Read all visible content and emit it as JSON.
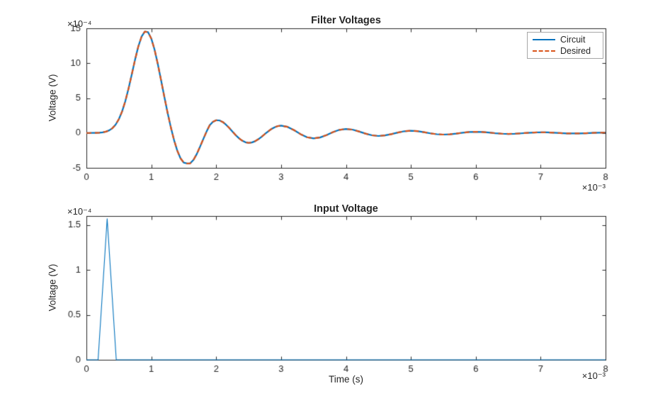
{
  "figure": {
    "background": "#ffffff",
    "axis_color": "#262626",
    "tick_label_color": "#262626",
    "legend_border_color": "#a6a6a6"
  },
  "chart_data": [
    {
      "type": "line",
      "title": "Filter Voltages",
      "xlabel": "",
      "ylabel": "Voltage (V)",
      "x_multiplier": "×10⁻³",
      "y_multiplier": "×10⁻⁴",
      "x_unit": "1e-3 s",
      "y_unit": "1e-4 V",
      "xlim": [
        0,
        8
      ],
      "ylim": [
        -5,
        15
      ],
      "xticks": [
        0,
        1,
        2,
        3,
        4,
        5,
        6,
        7,
        8
      ],
      "yticks": [
        -5,
        0,
        5,
        10,
        15
      ],
      "grid": false,
      "legend": {
        "position": "top-right",
        "entries": [
          {
            "label": "Circuit",
            "color": "#0072BD",
            "style": "solid"
          },
          {
            "label": "Desired",
            "color": "#D95319",
            "style": "dashed"
          }
        ]
      },
      "x": [
        0,
        0.05,
        0.1,
        0.15,
        0.2,
        0.25,
        0.3,
        0.35,
        0.4,
        0.45,
        0.5,
        0.55,
        0.6,
        0.65,
        0.7,
        0.75,
        0.8,
        0.85,
        0.9,
        0.95,
        1,
        1.05,
        1.1,
        1.15,
        1.2,
        1.25,
        1.3,
        1.35,
        1.4,
        1.45,
        1.5,
        1.55,
        1.6,
        1.65,
        1.7,
        1.75,
        1.8,
        1.85,
        1.9,
        1.95,
        2,
        2.05,
        2.1,
        2.15,
        2.2,
        2.25,
        2.3,
        2.35,
        2.4,
        2.45,
        2.5,
        2.55,
        2.6,
        2.65,
        2.7,
        2.75,
        2.8,
        2.85,
        2.9,
        2.95,
        3,
        3.1,
        3.2,
        3.3,
        3.4,
        3.5,
        3.6,
        3.7,
        3.8,
        3.9,
        4,
        4.1,
        4.2,
        4.3,
        4.4,
        4.5,
        4.6,
        4.7,
        4.8,
        4.9,
        5,
        5.1,
        5.2,
        5.3,
        5.4,
        5.5,
        5.6,
        5.7,
        5.8,
        5.9,
        6,
        6.1,
        6.2,
        6.3,
        6.4,
        6.5,
        6.6,
        6.7,
        6.8,
        6.9,
        7,
        7.1,
        7.2,
        7.3,
        7.4,
        7.5,
        7.6,
        7.7,
        7.8,
        7.9,
        8
      ],
      "shared_values": [
        0,
        0,
        0.01,
        0.02,
        0.04,
        0.09,
        0.19,
        0.37,
        0.68,
        1.19,
        1.98,
        3.09,
        4.57,
        6.39,
        8.43,
        10.52,
        12.4,
        13.81,
        14.53,
        14.45,
        13.54,
        11.95,
        9.89,
        7.58,
        5.22,
        2.95,
        0.85,
        -1,
        -2.52,
        -3.63,
        -4.25,
        -4.37,
        -4.35,
        -3.85,
        -3.03,
        -1.99,
        -0.9,
        0.17,
        1.11,
        1.61,
        1.82,
        1.8,
        1.58,
        1.2,
        0.73,
        0.21,
        -0.3,
        -0.75,
        -1.1,
        -1.33,
        -1.42,
        -1.36,
        -1.18,
        -0.89,
        -0.54,
        -0.15,
        0.22,
        0.56,
        0.82,
        0.99,
        1.05,
        0.87,
        0.4,
        -0.17,
        -0.61,
        -0.78,
        -0.65,
        -0.3,
        0.12,
        0.45,
        0.58,
        0.48,
        0.22,
        -0.09,
        -0.33,
        -0.43,
        -0.35,
        -0.16,
        0.07,
        0.25,
        0.32,
        0.26,
        0.12,
        -0.05,
        -0.18,
        -0.23,
        -0.19,
        -0.09,
        0.04,
        0.14,
        0.17,
        0.14,
        0.07,
        -0.03,
        -0.1,
        -0.13,
        -0.11,
        -0.05,
        0.02,
        0.07,
        0.1,
        0.08,
        0.04,
        -0.02,
        -0.06,
        -0.07,
        -0.06,
        -0.03,
        0.01,
        0.04,
        0.05
      ],
      "series": [
        {
          "name": "Circuit",
          "color": "#0072BD",
          "style": "solid",
          "width": 2.2,
          "values_ref": "shared_values"
        },
        {
          "name": "Desired",
          "color": "#D95319",
          "style": "dashed",
          "width": 2.2,
          "values_ref": "shared_values"
        }
      ]
    },
    {
      "type": "line",
      "title": "Input Voltage",
      "xlabel": "Time (s)",
      "ylabel": "Voltage (V)",
      "x_multiplier": "×10⁻³",
      "y_multiplier": "×10⁻⁴",
      "x_unit": "1e-3 s",
      "y_unit": "1e-4 V",
      "xlim": [
        0,
        8
      ],
      "ylim": [
        0,
        1.6
      ],
      "xticks": [
        0,
        1,
        2,
        3,
        4,
        5,
        6,
        7,
        8
      ],
      "yticks": [
        0,
        0.5,
        1,
        1.5
      ],
      "grid": false,
      "x": [
        0,
        0.18,
        0.32,
        0.46,
        8
      ],
      "series": [
        {
          "name": "Input",
          "color": "#0072BD",
          "style": "solid",
          "width": 1.1,
          "values": [
            0,
            0,
            1.57,
            0,
            0
          ]
        }
      ]
    }
  ]
}
